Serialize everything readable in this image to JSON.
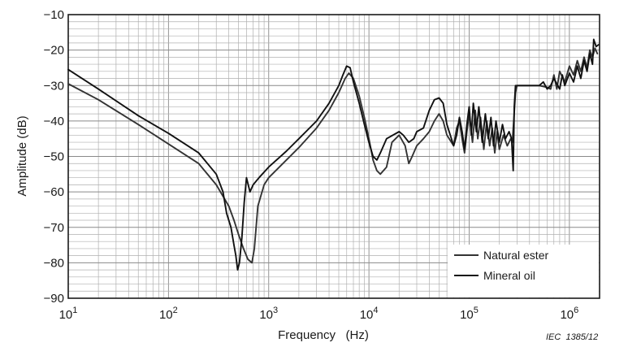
{
  "chart_data": {
    "type": "line",
    "x_scale": "log",
    "xlim": [
      10,
      2000000
    ],
    "ylim": [
      -90,
      -10
    ],
    "y_ticks": [
      -10,
      -20,
      -30,
      -40,
      -50,
      -60,
      -70,
      -80,
      -90
    ],
    "x_ticks": [
      {
        "value": 10,
        "base": "10",
        "exp": "1"
      },
      {
        "value": 100,
        "base": "10",
        "exp": "2"
      },
      {
        "value": 1000,
        "base": "10",
        "exp": "3"
      },
      {
        "value": 10000,
        "base": "10",
        "exp": "4"
      },
      {
        "value": 100000,
        "base": "10",
        "exp": "5"
      },
      {
        "value": 1000000,
        "base": "10",
        "exp": "6"
      }
    ],
    "xlabel": "Frequency   (Hz)",
    "ylabel": "Amplitude   (dB)",
    "grid": true,
    "legend_position": "bottom-right",
    "reference": "IEC  1385/12",
    "series": [
      {
        "name": "Natural ester",
        "color": "#333333",
        "points": [
          [
            10,
            -29.5
          ],
          [
            20,
            -34
          ],
          [
            50,
            -41
          ],
          [
            100,
            -46.5
          ],
          [
            200,
            -52
          ],
          [
            300,
            -58
          ],
          [
            400,
            -64
          ],
          [
            450,
            -68
          ],
          [
            500,
            -72
          ],
          [
            560,
            -76
          ],
          [
            620,
            -79
          ],
          [
            680,
            -80
          ],
          [
            720,
            -76
          ],
          [
            780,
            -64
          ],
          [
            900,
            -58
          ],
          [
            1000,
            -56
          ],
          [
            1500,
            -51
          ],
          [
            2000,
            -47.5
          ],
          [
            3000,
            -42
          ],
          [
            4000,
            -37
          ],
          [
            5000,
            -32
          ],
          [
            5800,
            -28
          ],
          [
            6300,
            -26.5
          ],
          [
            7000,
            -28
          ],
          [
            8000,
            -33
          ],
          [
            9000,
            -39
          ],
          [
            10000,
            -45
          ],
          [
            11000,
            -51
          ],
          [
            12000,
            -54
          ],
          [
            13000,
            -55
          ],
          [
            15000,
            -53
          ],
          [
            17000,
            -46
          ],
          [
            20000,
            -44
          ],
          [
            23000,
            -47
          ],
          [
            25000,
            -52
          ],
          [
            27000,
            -50
          ],
          [
            30000,
            -47
          ],
          [
            35000,
            -45
          ],
          [
            40000,
            -43
          ],
          [
            45000,
            -40
          ],
          [
            50000,
            -38
          ],
          [
            55000,
            -40
          ],
          [
            60000,
            -44
          ],
          [
            70000,
            -47
          ],
          [
            75000,
            -42
          ],
          [
            80000,
            -40
          ],
          [
            85000,
            -45
          ],
          [
            90000,
            -49
          ],
          [
            95000,
            -43
          ],
          [
            100000,
            -38
          ],
          [
            108000,
            -46
          ],
          [
            115000,
            -37
          ],
          [
            122000,
            -45
          ],
          [
            130000,
            -39
          ],
          [
            140000,
            -48
          ],
          [
            150000,
            -40
          ],
          [
            160000,
            -47
          ],
          [
            170000,
            -42
          ],
          [
            180000,
            -49
          ],
          [
            190000,
            -43
          ],
          [
            200000,
            -48
          ],
          [
            220000,
            -44
          ],
          [
            240000,
            -47
          ],
          [
            260000,
            -45
          ],
          [
            270000,
            -46
          ],
          [
            290000,
            -32
          ],
          [
            300000,
            -30
          ],
          [
            400000,
            -30
          ],
          [
            500000,
            -30
          ],
          [
            600000,
            -30.5
          ],
          [
            650000,
            -31
          ],
          [
            700000,
            -27
          ],
          [
            750000,
            -31
          ],
          [
            800000,
            -26
          ],
          [
            900000,
            -29
          ],
          [
            1000000,
            -24.5
          ],
          [
            1100000,
            -27
          ],
          [
            1200000,
            -23
          ],
          [
            1300000,
            -26
          ],
          [
            1400000,
            -22
          ],
          [
            1500000,
            -25
          ],
          [
            1600000,
            -20
          ],
          [
            1700000,
            -22
          ],
          [
            1800000,
            -19.5
          ],
          [
            1900000,
            -21
          ]
        ]
      },
      {
        "name": "Mineral oil",
        "color": "#111111",
        "points": [
          [
            10,
            -25.5
          ],
          [
            20,
            -31
          ],
          [
            50,
            -38.5
          ],
          [
            100,
            -43.5
          ],
          [
            200,
            -49
          ],
          [
            300,
            -55
          ],
          [
            350,
            -60
          ],
          [
            380,
            -66
          ],
          [
            420,
            -70
          ],
          [
            450,
            -75
          ],
          [
            470,
            -78
          ],
          [
            490,
            -82
          ],
          [
            510,
            -80
          ],
          [
            540,
            -73
          ],
          [
            570,
            -63
          ],
          [
            600,
            -56
          ],
          [
            650,
            -60
          ],
          [
            700,
            -58
          ],
          [
            800,
            -56
          ],
          [
            1000,
            -53
          ],
          [
            1500,
            -48.5
          ],
          [
            2000,
            -45
          ],
          [
            3000,
            -40
          ],
          [
            4000,
            -35
          ],
          [
            5000,
            -30
          ],
          [
            5500,
            -27
          ],
          [
            6000,
            -24.5
          ],
          [
            6500,
            -25
          ],
          [
            7000,
            -29
          ],
          [
            8000,
            -35
          ],
          [
            9000,
            -41
          ],
          [
            10000,
            -46
          ],
          [
            11000,
            -50
          ],
          [
            12000,
            -51
          ],
          [
            13000,
            -49
          ],
          [
            15000,
            -45
          ],
          [
            20000,
            -43
          ],
          [
            22000,
            -44
          ],
          [
            25000,
            -46
          ],
          [
            28000,
            -45
          ],
          [
            30000,
            -43
          ],
          [
            35000,
            -42
          ],
          [
            40000,
            -37
          ],
          [
            45000,
            -34
          ],
          [
            50000,
            -33.5
          ],
          [
            55000,
            -35
          ],
          [
            60000,
            -41
          ],
          [
            70000,
            -47
          ],
          [
            75000,
            -44
          ],
          [
            80000,
            -39
          ],
          [
            85000,
            -43
          ],
          [
            90000,
            -48
          ],
          [
            95000,
            -41
          ],
          [
            100000,
            -36
          ],
          [
            105000,
            -44
          ],
          [
            110000,
            -35
          ],
          [
            118000,
            -43
          ],
          [
            125000,
            -36
          ],
          [
            135000,
            -46
          ],
          [
            145000,
            -38
          ],
          [
            155000,
            -45
          ],
          [
            165000,
            -39
          ],
          [
            175000,
            -47
          ],
          [
            185000,
            -40
          ],
          [
            200000,
            -46
          ],
          [
            215000,
            -41
          ],
          [
            230000,
            -45
          ],
          [
            250000,
            -43
          ],
          [
            265000,
            -45
          ],
          [
            275000,
            -54
          ],
          [
            282000,
            -36
          ],
          [
            290000,
            -30
          ],
          [
            300000,
            -30
          ],
          [
            400000,
            -30
          ],
          [
            500000,
            -30
          ],
          [
            550000,
            -29
          ],
          [
            600000,
            -31
          ],
          [
            650000,
            -30
          ],
          [
            700000,
            -28
          ],
          [
            800000,
            -31
          ],
          [
            850000,
            -27
          ],
          [
            900000,
            -30
          ],
          [
            1000000,
            -26.5
          ],
          [
            1100000,
            -29
          ],
          [
            1200000,
            -24.5
          ],
          [
            1300000,
            -28
          ],
          [
            1400000,
            -23
          ],
          [
            1500000,
            -26
          ],
          [
            1600000,
            -21
          ],
          [
            1700000,
            -24
          ],
          [
            1750000,
            -17
          ],
          [
            1850000,
            -19
          ],
          [
            1950000,
            -18.5
          ]
        ]
      }
    ]
  }
}
